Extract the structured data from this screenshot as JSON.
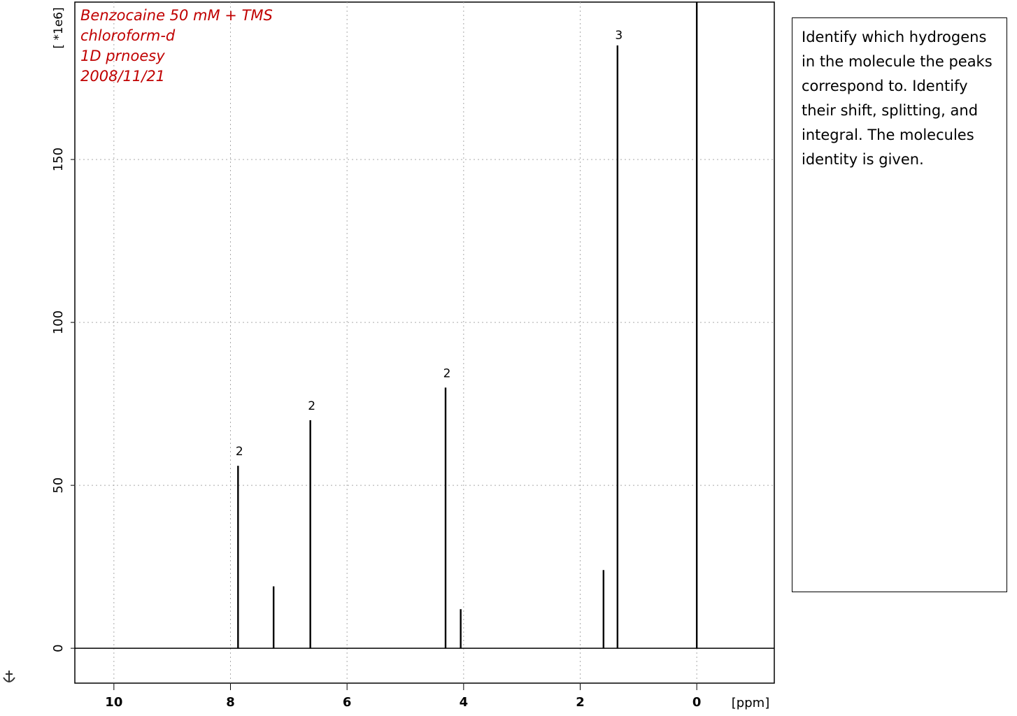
{
  "chart_data": {
    "type": "spectrum",
    "annotations": [
      "Benzocaine 50 mM + TMS",
      "chloroform-d",
      "1D prnoesy",
      "2008/11/21"
    ],
    "x_label": "[ppm]",
    "y_label": "[ *1e6]",
    "x": [
      7.87,
      7.26,
      6.63,
      4.31,
      4.05,
      1.6,
      1.36,
      0.0
    ],
    "values": [
      56,
      19,
      70,
      80,
      12,
      24,
      185,
      200
    ],
    "color": "#000000",
    "integrals": [
      {
        "x": 7.87,
        "label": "2"
      },
      {
        "x": 6.63,
        "label": "2"
      },
      {
        "x": 4.31,
        "label": "2"
      },
      {
        "x": 1.36,
        "label": "3"
      }
    ],
    "xlim": [
      10.67,
      -1.33
    ],
    "xticks": [
      10,
      8,
      6,
      4,
      2,
      0
    ],
    "ylim": [
      -10.7,
      198.3
    ],
    "yticks": [
      0,
      50,
      100,
      150
    ],
    "grid": true
  },
  "note": {
    "text": "Identify which hydrogens in the molecule the peaks correspond to. Identify their shift, splitting, and integral. The molecules identity is given."
  }
}
